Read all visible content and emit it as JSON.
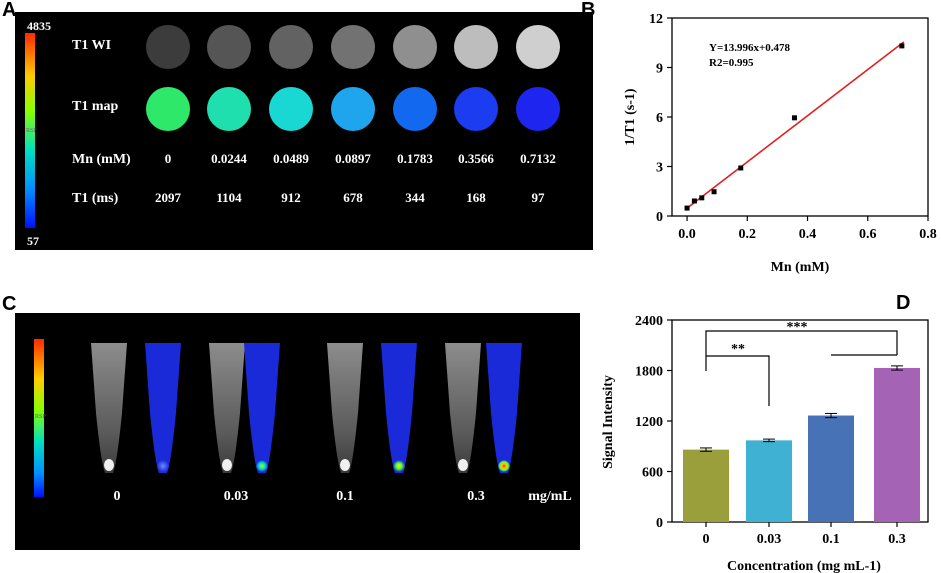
{
  "panel_labels": [
    "A",
    "B",
    "C",
    "D"
  ],
  "panel_a": {
    "colorbar": {
      "max": "4835",
      "min": "57",
      "label": "RSP"
    },
    "rows": {
      "t1wi": "T1 WI",
      "t1map": "T1 map",
      "mn": "Mn (mM)",
      "t1ms": "T1 (ms)"
    },
    "mn_values": [
      "0",
      "0.0244",
      "0.0489",
      "0.0897",
      "0.1783",
      "0.3566",
      "0.7132"
    ],
    "t1_values": [
      "2097",
      "1104",
      "912",
      "678",
      "344",
      "168",
      "97"
    ],
    "wi_gray": [
      "#3c3c3c",
      "#555555",
      "#626262",
      "#727272",
      "#8f8f8f",
      "#bdbdbd",
      "#cfcfcf"
    ],
    "map_colors": [
      "#2ee86a",
      "#1fdfae",
      "#19d7d2",
      "#1ea5ee",
      "#1268ee",
      "#1b3cf0",
      "#1e25ee"
    ]
  },
  "chart_data": [
    {
      "type": "scatter",
      "panel": "B",
      "xlabel": "Mn (mM)",
      "ylabel": "1/T1 (s-1)",
      "xlim": [
        -0.05,
        0.8
      ],
      "ylim": [
        0,
        12
      ],
      "xticks": [
        "0.0",
        "0.2",
        "0.4",
        "0.6",
        "0.8"
      ],
      "yticks": [
        "0",
        "3",
        "6",
        "9",
        "12"
      ],
      "x": [
        0,
        0.0244,
        0.0489,
        0.0897,
        0.1783,
        0.3566,
        0.7132
      ],
      "y": [
        0.48,
        0.91,
        1.1,
        1.47,
        2.91,
        5.95,
        10.31
      ],
      "fit": {
        "slope": 13.996,
        "intercept": 0.478,
        "color": "#e02020"
      },
      "annotation": [
        "Y=13.996x+0.478",
        "R2=0.995"
      ]
    },
    {
      "type": "bar",
      "panel": "D",
      "xlabel": "Concentration (mg mL-1)",
      "ylabel": "Signal Intensity",
      "ylim": [
        0,
        2400
      ],
      "yticks": [
        "0",
        "600",
        "1200",
        "1800",
        "2400"
      ],
      "categories": [
        "0",
        "0.03",
        "0.1",
        "0.3"
      ],
      "values": [
        860,
        970,
        1265,
        1830
      ],
      "errors": [
        20,
        15,
        25,
        25
      ],
      "colors": [
        "#9a9f3b",
        "#3fb1d3",
        "#4773b6",
        "#a463b5"
      ],
      "significance": [
        "**",
        "***"
      ]
    }
  ],
  "panel_c": {
    "labels": [
      "0",
      "0.03",
      "0.1",
      "0.3"
    ],
    "unit": "mg/mL",
    "colorbar_label": "RSP"
  }
}
